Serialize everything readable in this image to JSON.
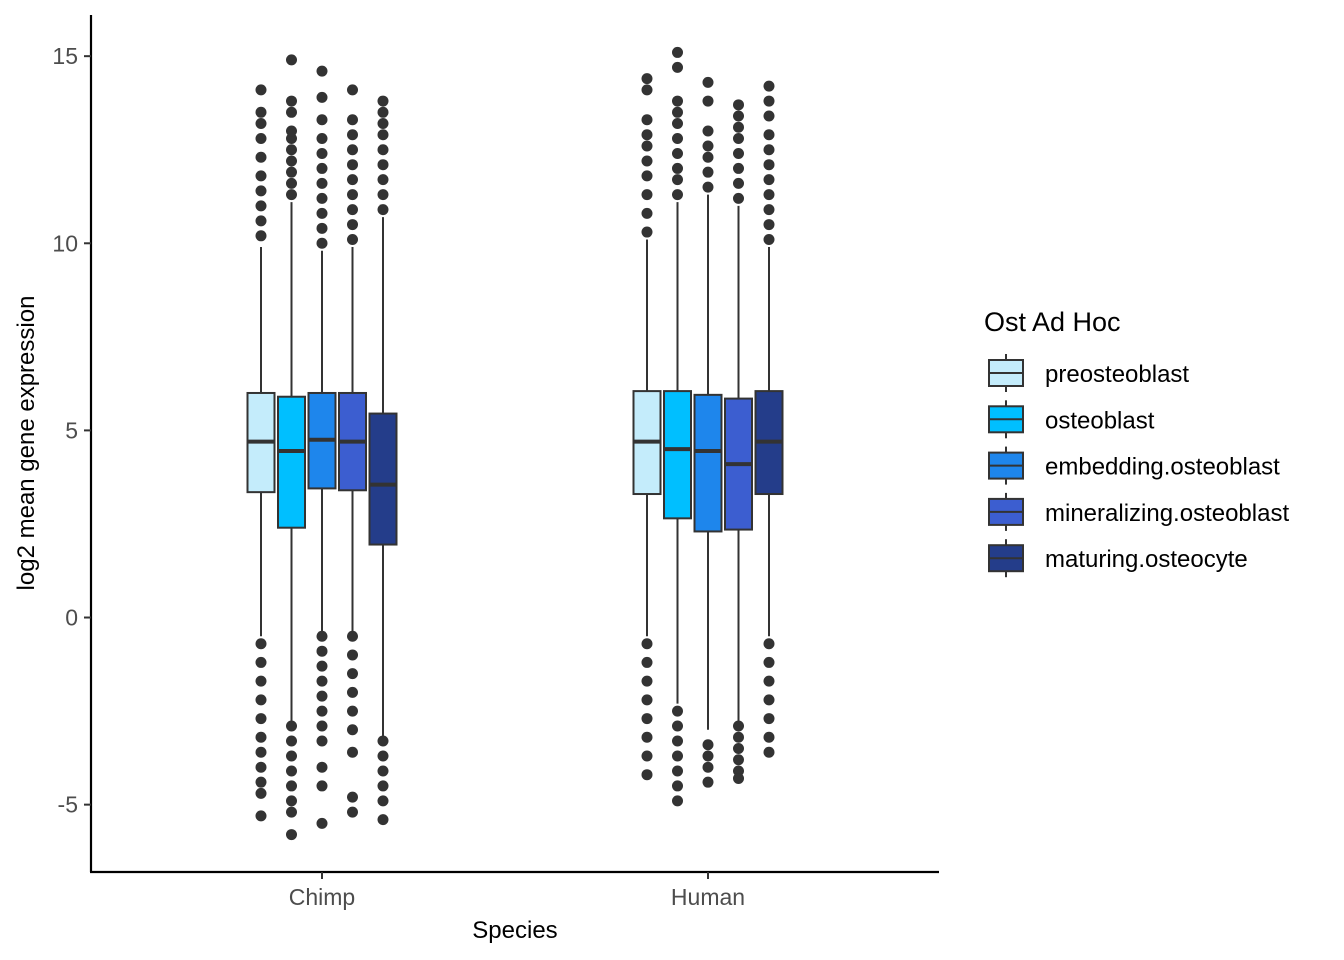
{
  "chart_data": {
    "type": "boxplot",
    "xlabel": "Species",
    "ylabel": "log2 mean gene expression",
    "ylim": [
      -6.8,
      16.1
    ],
    "yticks": [
      -5,
      0,
      5,
      10,
      15
    ],
    "ytick_labels": [
      "-5",
      "0",
      "5",
      "10",
      "15"
    ],
    "categories": [
      "Chimp",
      "Human"
    ],
    "legend": {
      "title": "Ost Ad Hoc",
      "position": "right"
    },
    "colors": {
      "preosteoblast": "#c4ecfb",
      "osteoblast": "#00bfff",
      "embedding.osteoblast": "#1e86ec",
      "mineralizing.osteoblast": "#3c5ed0",
      "maturing.osteocyte": "#243d8a",
      "box_line": "#333333",
      "outlier": "#333333",
      "axis": "#000000"
    },
    "series": [
      {
        "name": "preosteoblast",
        "boxes": [
          {
            "category": "Chimp",
            "whisker_low": -0.5,
            "q1": 3.35,
            "median": 4.7,
            "q3": 6.0,
            "whisker_high": 9.9,
            "outliers_high": [
              10.2,
              10.6,
              11.0,
              11.4,
              11.8,
              12.3,
              12.8,
              13.2,
              13.5,
              14.1
            ],
            "outliers_low": [
              -0.7,
              -1.2,
              -1.7,
              -2.2,
              -2.7,
              -3.2,
              -3.6,
              -4.0,
              -4.4,
              -4.7,
              -5.3
            ]
          },
          {
            "category": "Human",
            "whisker_low": -0.5,
            "q1": 3.3,
            "median": 4.7,
            "q3": 6.05,
            "whisker_high": 10.1,
            "outliers_high": [
              10.3,
              10.8,
              11.3,
              11.8,
              12.2,
              12.6,
              12.9,
              13.3,
              14.1,
              14.4
            ],
            "outliers_low": [
              -0.7,
              -1.2,
              -1.7,
              -2.2,
              -2.7,
              -3.2,
              -3.7,
              -4.2
            ]
          }
        ]
      },
      {
        "name": "osteoblast",
        "boxes": [
          {
            "category": "Chimp",
            "whisker_low": -2.8,
            "q1": 2.4,
            "median": 4.45,
            "q3": 5.9,
            "whisker_high": 11.1,
            "outliers_high": [
              11.3,
              11.6,
              11.9,
              12.2,
              12.5,
              12.8,
              13.0,
              13.5,
              13.8,
              14.9
            ],
            "outliers_low": [
              -2.9,
              -3.3,
              -3.7,
              -4.1,
              -4.5,
              -4.9,
              -5.2,
              -5.8
            ]
          },
          {
            "category": "Human",
            "whisker_low": -2.3,
            "q1": 2.65,
            "median": 4.5,
            "q3": 6.05,
            "whisker_high": 11.1,
            "outliers_high": [
              11.3,
              11.7,
              12.0,
              12.4,
              12.8,
              13.2,
              13.5,
              13.8,
              14.7,
              15.1
            ],
            "outliers_low": [
              -2.5,
              -2.9,
              -3.3,
              -3.7,
              -4.1,
              -4.5,
              -4.9
            ]
          }
        ]
      },
      {
        "name": "embedding.osteoblast",
        "boxes": [
          {
            "category": "Chimp",
            "whisker_low": -0.4,
            "q1": 3.45,
            "median": 4.75,
            "q3": 6.0,
            "whisker_high": 9.8,
            "outliers_high": [
              10.0,
              10.4,
              10.8,
              11.2,
              11.6,
              12.0,
              12.4,
              12.8,
              13.3,
              13.9,
              14.6
            ],
            "outliers_low": [
              -0.5,
              -0.9,
              -1.3,
              -1.7,
              -2.1,
              -2.5,
              -2.9,
              -3.3,
              -4.0,
              -4.5,
              -5.5
            ]
          },
          {
            "category": "Human",
            "whisker_low": -3.0,
            "q1": 2.3,
            "median": 4.45,
            "q3": 5.95,
            "whisker_high": 11.3,
            "outliers_high": [
              11.5,
              11.9,
              12.3,
              12.6,
              13.0,
              13.8,
              14.3
            ],
            "outliers_low": [
              -3.4,
              -3.7,
              -4.0,
              -4.4
            ]
          }
        ]
      },
      {
        "name": "mineralizing.osteoblast",
        "boxes": [
          {
            "category": "Chimp",
            "whisker_low": -0.4,
            "q1": 3.4,
            "median": 4.7,
            "q3": 6.0,
            "whisker_high": 9.9,
            "outliers_high": [
              10.1,
              10.5,
              10.9,
              11.3,
              11.7,
              12.1,
              12.5,
              12.9,
              13.3,
              14.1
            ],
            "outliers_low": [
              -0.5,
              -1.0,
              -1.5,
              -2.0,
              -2.5,
              -3.0,
              -3.6,
              -4.8,
              -5.2
            ]
          },
          {
            "category": "Human",
            "whisker_low": -2.8,
            "q1": 2.35,
            "median": 4.1,
            "q3": 5.85,
            "whisker_high": 11.0,
            "outliers_high": [
              11.2,
              11.6,
              12.0,
              12.4,
              12.8,
              13.1,
              13.4,
              13.7
            ],
            "outliers_low": [
              -2.9,
              -3.2,
              -3.5,
              -3.8,
              -4.1,
              -4.3
            ]
          }
        ]
      },
      {
        "name": "maturing.osteocyte",
        "boxes": [
          {
            "category": "Chimp",
            "whisker_low": -3.2,
            "q1": 1.95,
            "median": 3.55,
            "q3": 5.45,
            "whisker_high": 10.7,
            "outliers_high": [
              10.9,
              11.3,
              11.7,
              12.1,
              12.5,
              12.9,
              13.2,
              13.5,
              13.8
            ],
            "outliers_low": [
              -3.3,
              -3.7,
              -4.1,
              -4.5,
              -4.9,
              -5.4
            ]
          },
          {
            "category": "Human",
            "whisker_low": -0.5,
            "q1": 3.3,
            "median": 4.7,
            "q3": 6.05,
            "whisker_high": 9.9,
            "outliers_high": [
              10.1,
              10.5,
              10.9,
              11.3,
              11.7,
              12.1,
              12.5,
              12.9,
              13.4,
              13.8,
              14.2
            ],
            "outliers_low": [
              -0.7,
              -1.2,
              -1.7,
              -2.2,
              -2.7,
              -3.2,
              -3.6
            ]
          }
        ]
      }
    ]
  }
}
